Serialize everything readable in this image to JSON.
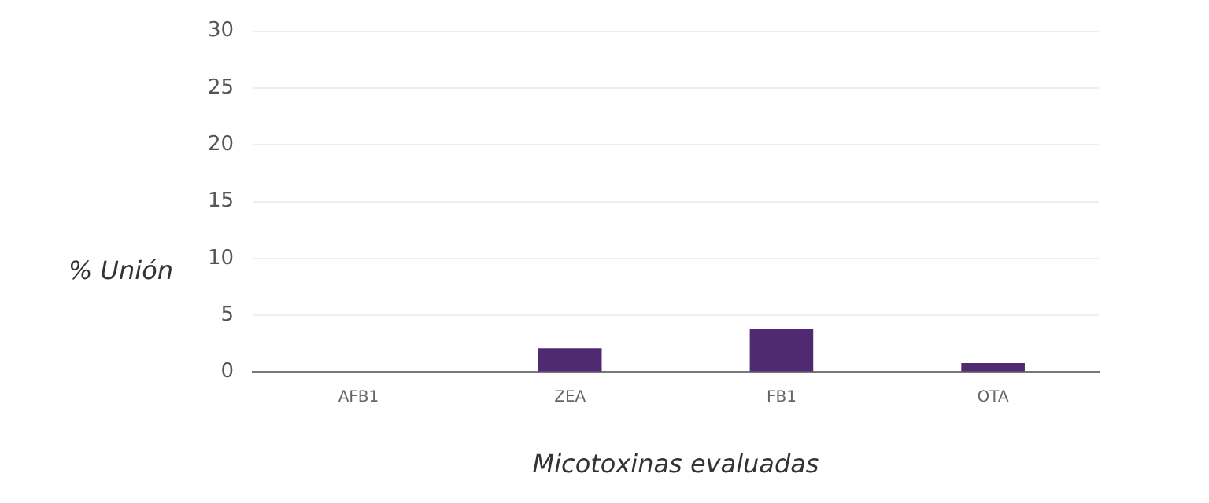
{
  "chart_data": {
    "type": "bar",
    "xlabel": "Micotoxinas evaluadas",
    "ylabel": "% Unión",
    "categories": [
      "AFB1",
      "ZEA",
      "FB1",
      "OTA"
    ],
    "values": [
      0,
      2.1,
      3.8,
      0.8
    ],
    "color": "#4f2a72",
    "ylim": [
      0,
      30
    ],
    "yticks": [
      0,
      5,
      10,
      15,
      20,
      25,
      30
    ],
    "grid": "y",
    "legend": false
  }
}
